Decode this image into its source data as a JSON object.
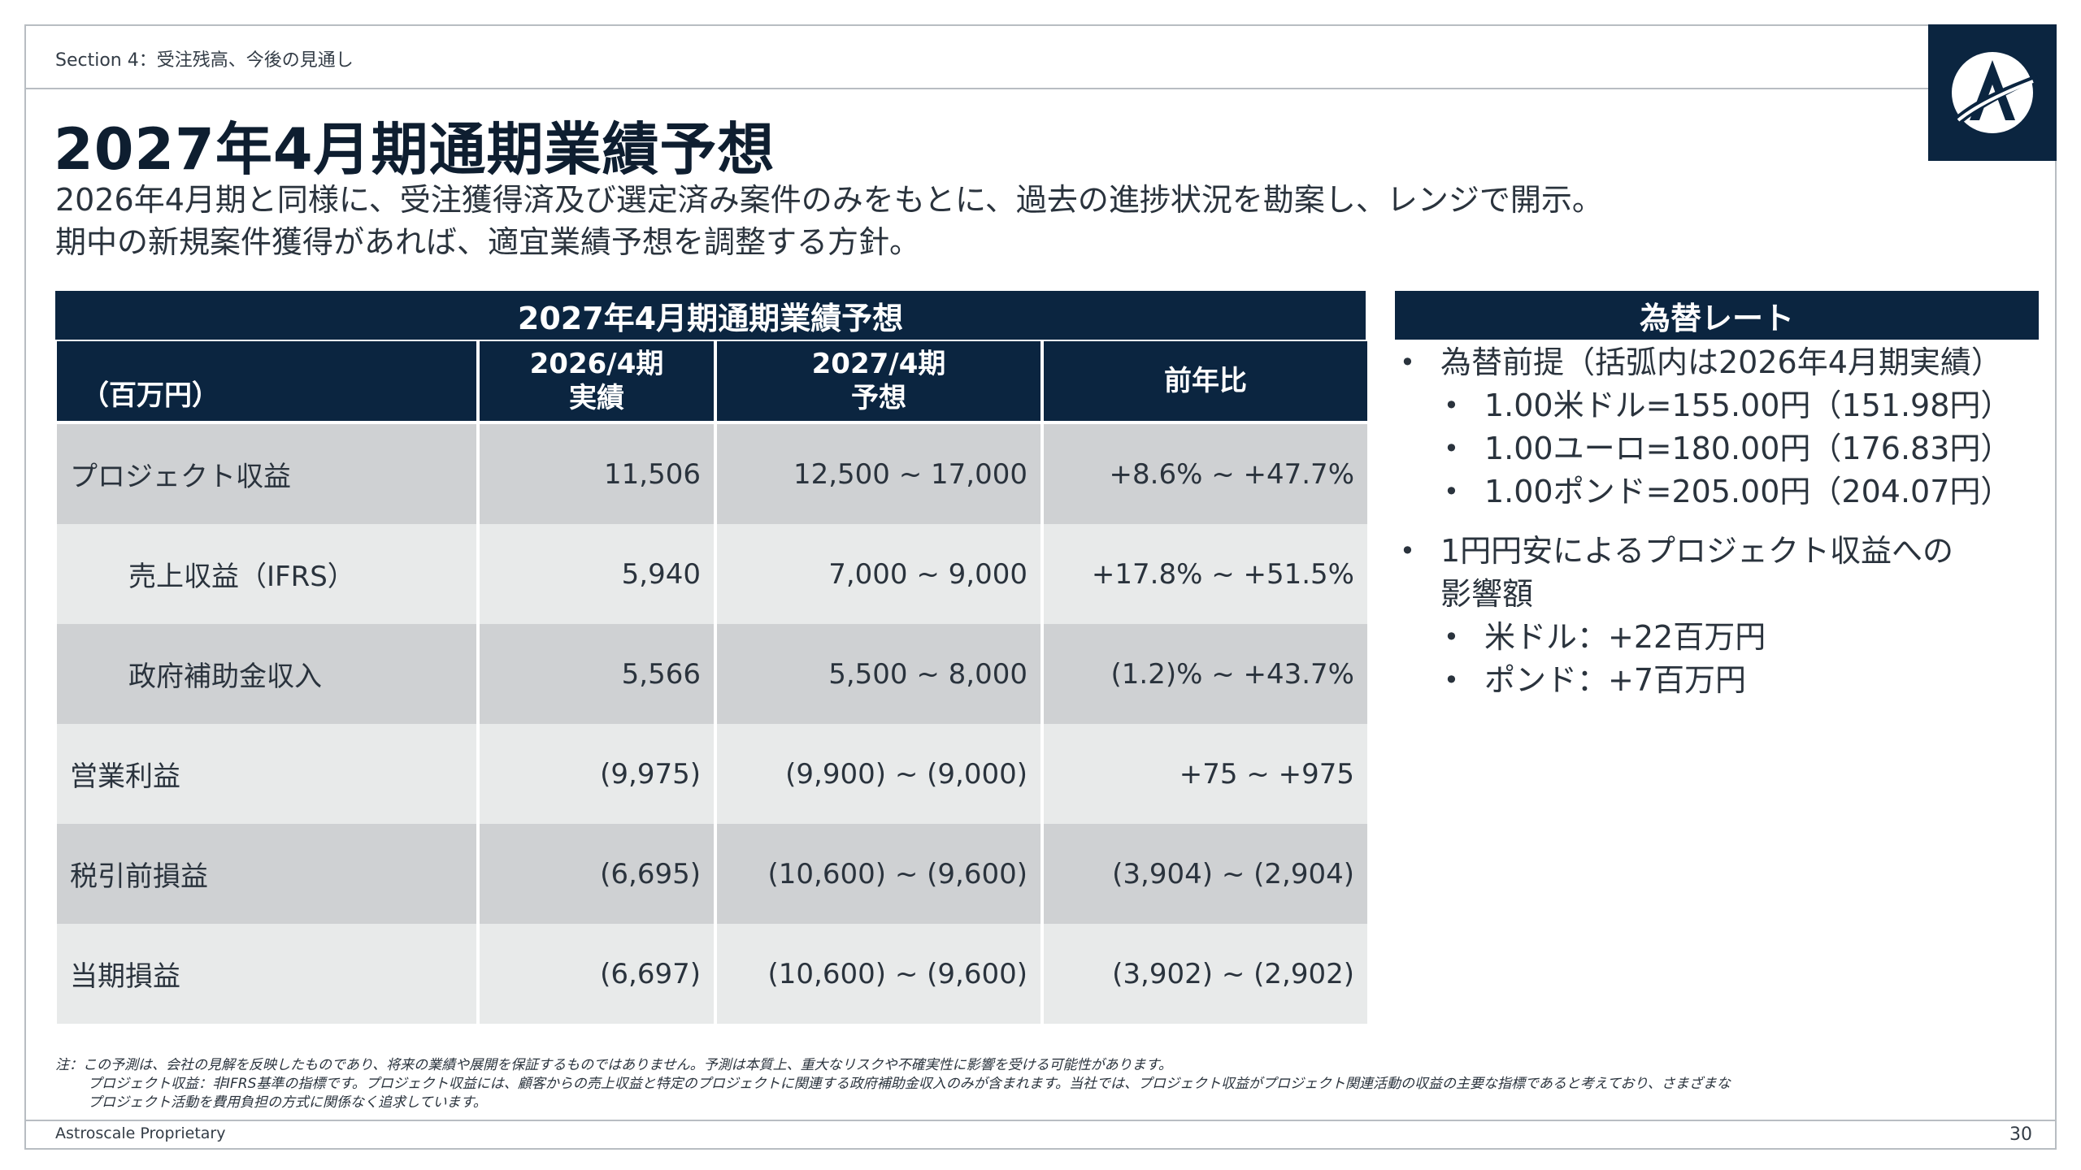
{
  "header": {
    "section_label": "Section 4：受注残高、今後の見通し",
    "title": "2027年4月期通期業績予想",
    "subtitle_lines": [
      "2026年4月期と同様に、受注獲得済及び選定済み案件のみをもとに、過去の進捗状況を勘案し、レンジで開示。",
      "期中の新規案件獲得があれば、適宜業績予想を調整する方針。"
    ]
  },
  "logo": {
    "icon": "astroscale-logo-icon",
    "bg_color": "#0b2540"
  },
  "forecast_table": {
    "title": "2027年4月期通期業績予想",
    "unit_label": "（百万円）",
    "col_actual": [
      "2026/4期",
      "実績"
    ],
    "col_forecast": [
      "2027/4期",
      "予想"
    ],
    "col_yoy": "前年比",
    "rows": [
      {
        "label": "プロジェクト収益",
        "actual": "11,506",
        "forecast": "12,500 ~ 17,000",
        "yoy": "+8.6% ~ +47.7%"
      },
      {
        "label": "売上収益（IFRS）",
        "actual": "5,940",
        "forecast": "7,000 ~ 9,000",
        "yoy": "+17.8% ~ +51.5%"
      },
      {
        "label": "政府補助金収入",
        "actual": "5,566",
        "forecast": "5,500 ~ 8,000",
        "yoy": "(1.2)% ~ +43.7%"
      },
      {
        "label": "営業利益",
        "actual": "(9,975)",
        "forecast": "(9,900) ~ (9,000)",
        "yoy": "+75 ~ +975"
      },
      {
        "label": "税引前損益",
        "actual": "(6,695)",
        "forecast": "(10,600) ~ (9,600)",
        "yoy": "(3,904) ~ (2,904)"
      },
      {
        "label": "当期損益",
        "actual": "(6,697)",
        "forecast": "(10,600) ~ (9,600)",
        "yoy": "(3,902) ~ (2,902)"
      }
    ]
  },
  "fx": {
    "title": "為替レート",
    "premise": "為替前提（括弧内は2026年4月期実績）",
    "rates": [
      "1.00米ドル=155.00円（151.98円）",
      "1.00ユーロ=180.00円（176.83円）",
      "1.00ポンド=205.00円（204.07円）"
    ],
    "impact_title_lines": [
      "1円円安によるプロジェクト収益への",
      "影響額"
    ],
    "impacts": [
      "米ドル：+22百万円",
      "ポンド：+7百万円"
    ]
  },
  "notes": [
    "注：この予測は、会社の見解を反映したものであり、将来の業績や展開を保証するものではありません。予測は本質上、重大なリスクや不確実性に影響を受ける可能性があります。",
    "プロジェクト収益：非IFRS基準の指標です。プロジェクト収益には、顧客からの売上収益と特定のプロジェクトに関連する政府補助金収入のみが含まれます。当社では、プロジェクト収益がプロジェクト関連活動の収益の主要な指標であると考えており、さまざまな",
    "プロジェクト活動を費用負担の方式に関係なく追求しています。"
  ],
  "footer": {
    "company": "Astroscale Proprietary",
    "page": "30"
  }
}
